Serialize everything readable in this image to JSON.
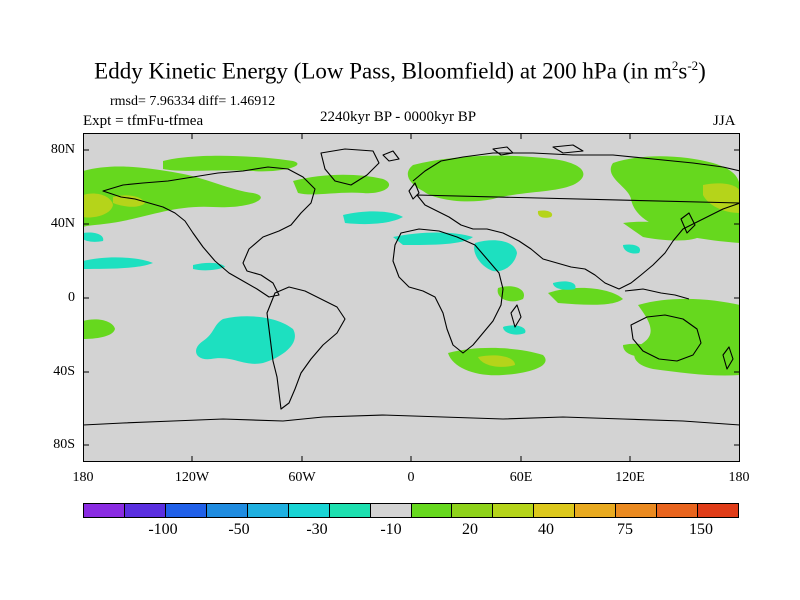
{
  "title": {
    "main": "Eddy Kinetic Energy (Low Pass, Bloomfield) at 200 hPa (in m",
    "sup1": "2",
    "mid": "s",
    "sup2": "-2",
    "end": ")"
  },
  "stats": {
    "rmsd_diff": "rmsd= 7.96334 diff= 1.46912",
    "expt": "Expt = tfmFu-tfmea",
    "period": "2240kyr BP - 0000kyr BP",
    "season": "JJA"
  },
  "axes": {
    "lat_labels": [
      "80N",
      "40N",
      "0",
      "40S",
      "80S"
    ],
    "lon_labels": [
      "180",
      "120W",
      "60W",
      "0",
      "60E",
      "120E",
      "180"
    ]
  },
  "colorbar": {
    "colors": [
      "#8a2be2",
      "#5a2fe0",
      "#2060e8",
      "#1f8ce0",
      "#1fb0e0",
      "#19d4d4",
      "#1de0b0",
      "#d3d3d3",
      "#66d81e",
      "#8ed21a",
      "#b5d41a",
      "#dcc81c",
      "#e8aa20",
      "#ea8a20",
      "#e8641e",
      "#e03c18"
    ],
    "labels": [
      "-100",
      "-50",
      "-30",
      "-10",
      "20",
      "40",
      "75",
      "150"
    ]
  },
  "map_colors": {
    "background": "#d3d3d3",
    "positive_low": "#66d81e",
    "positive_mid": "#b5d41a",
    "negative_low": "#1de0c0",
    "coast": "#000000"
  }
}
